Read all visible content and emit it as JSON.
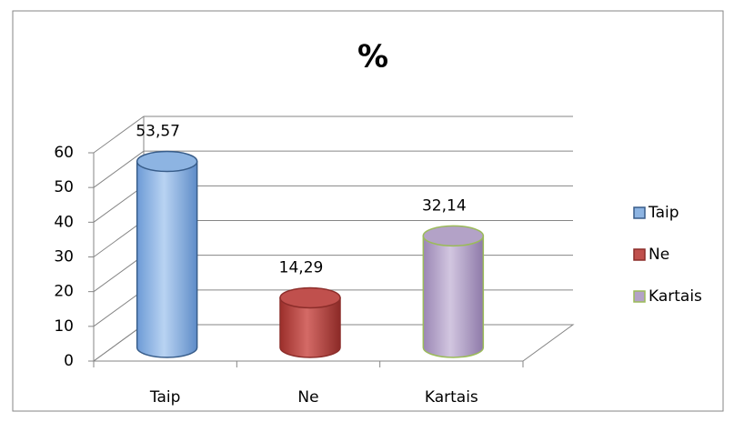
{
  "chart_data": {
    "type": "bar3d",
    "title": "%",
    "categories": [
      "Taip",
      "Ne",
      "Kartais"
    ],
    "values": [
      53.57,
      14.29,
      32.14
    ],
    "value_labels": [
      "53,57",
      "14,29",
      "32,14"
    ],
    "colors": [
      "#8db4e2",
      "#c0504d",
      "#b3a2c7"
    ],
    "edge_colors": [
      "#385d8a",
      "#8c2d2a",
      "#9bbb59"
    ],
    "ylim": [
      0,
      60
    ],
    "yticks": [
      0,
      10,
      20,
      30,
      40,
      50,
      60
    ],
    "grid": true,
    "legend": "right"
  }
}
